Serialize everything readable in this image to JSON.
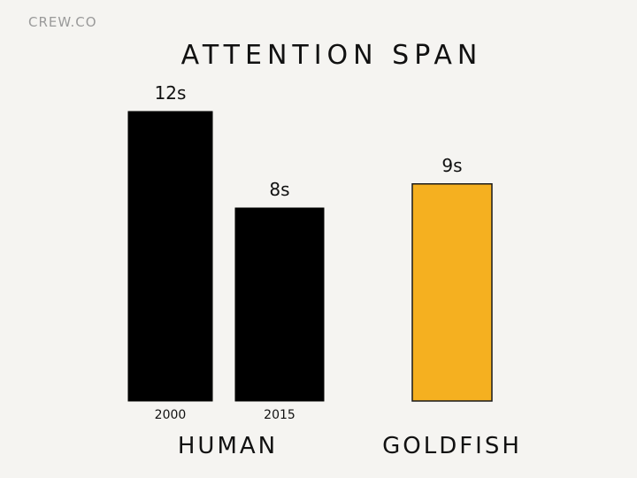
{
  "watermark": "CREW.CO",
  "colors": {
    "background": "#f5f4f1",
    "human_bar": "#000000",
    "goldfish_bar": "#f5b020",
    "text": "#111111",
    "watermark": "#9a9a9a"
  },
  "chart_data": {
    "type": "bar",
    "title": "ATTENTION SPAN",
    "xlabel": "",
    "ylabel": "",
    "grid": false,
    "legend": "none",
    "unit": "s",
    "ylim": [
      0,
      12
    ],
    "groups": [
      {
        "name": "HUMAN",
        "bars": [
          {
            "category": "2000",
            "value": 12,
            "label": "12s",
            "color": "#000000"
          },
          {
            "category": "2015",
            "value": 8,
            "label": "8s",
            "color": "#000000"
          }
        ]
      },
      {
        "name": "GOLDFISH",
        "bars": [
          {
            "category": "",
            "value": 9,
            "label": "9s",
            "color": "#f5b020"
          }
        ]
      }
    ]
  }
}
